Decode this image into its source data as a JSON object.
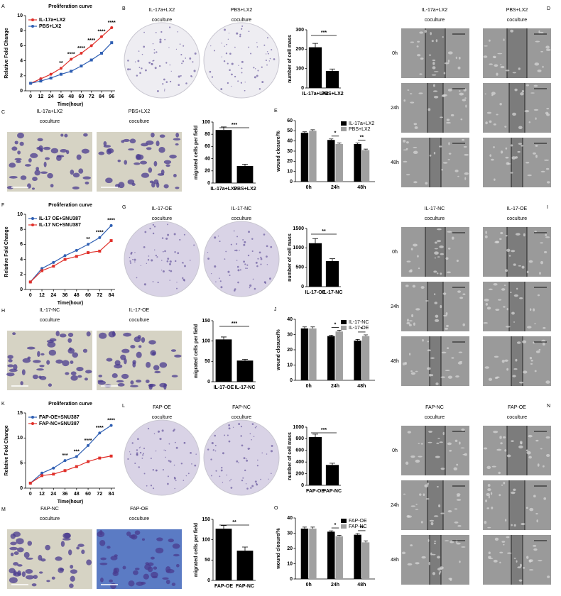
{
  "chart_data": [
    {
      "type": "line",
      "panel": "A",
      "title": "Proliferation curve",
      "x_label": "Time(hour)",
      "y_label": "Relative Fold Change",
      "x": [
        0,
        12,
        24,
        36,
        48,
        60,
        72,
        84,
        96
      ],
      "xlim": [
        -6,
        100
      ],
      "xticks": [
        0,
        12,
        24,
        36,
        48,
        60,
        72,
        84,
        96
      ],
      "ylim": [
        0,
        10
      ],
      "yticks": [
        0,
        2,
        4,
        6,
        8,
        10
      ],
      "legend": "upper left",
      "series": [
        {
          "name": "IL-17a+LX2",
          "color": "#e0302a",
          "values": [
            1,
            1.6,
            2.2,
            3,
            4.2,
            5,
            6,
            7.2,
            8.4
          ]
        },
        {
          "name": "PBS+LX2",
          "color": "#2f5fb3",
          "values": [
            1,
            1.3,
            1.7,
            2.2,
            2.6,
            3.3,
            4.1,
            5,
            6.4
          ]
        }
      ],
      "significance": [
        {
          "x": 36,
          "label": "**"
        },
        {
          "x": 48,
          "label": "****"
        },
        {
          "x": 60,
          "label": "****"
        },
        {
          "x": 72,
          "label": "****"
        },
        {
          "x": 84,
          "label": "****"
        },
        {
          "x": 96,
          "label": "****"
        }
      ]
    },
    {
      "type": "bar",
      "categories": [
        "IL-17a+LX2",
        "PBS+LX2"
      ],
      "values": [
        210,
        88
      ],
      "errors": [
        20,
        10
      ],
      "color": "#000000",
      "y_label": "number of cell mass",
      "ylim": [
        0,
        300
      ],
      "yticks": [
        0,
        100,
        200,
        300
      ],
      "significance": "***"
    },
    {
      "type": "bar",
      "categories": [
        "IL-17a+LX2",
        "PBS+LX2"
      ],
      "values": [
        87,
        28
      ],
      "errors": [
        5,
        3
      ],
      "color": "#000000",
      "y_label": "migrated cells per field",
      "ylim": [
        0,
        100
      ],
      "yticks": [
        0,
        20,
        40,
        60,
        80,
        100
      ],
      "significance": "***"
    },
    {
      "type": "grouped_bar",
      "panel": "E",
      "categories": [
        "0h",
        "24h",
        "48h"
      ],
      "y_label": "wound closure/%",
      "ylim": [
        0,
        60
      ],
      "yticks": [
        0,
        10,
        20,
        30,
        40,
        50,
        60
      ],
      "legend": "upper right",
      "series": [
        {
          "name": "IL-17a+LX2",
          "color": "#000000",
          "values": [
            48,
            41,
            37
          ],
          "errors": [
            1,
            1,
            1
          ]
        },
        {
          "name": "PBS+LX2",
          "color": "#a0a0a0",
          "values": [
            50,
            37,
            31
          ],
          "errors": [
            1,
            1,
            1
          ]
        }
      ],
      "significance": [
        null,
        "*",
        "**"
      ]
    },
    {
      "type": "line",
      "panel": "F",
      "title": "Proliferation curve",
      "x_label": "Time(hour)",
      "y_label": "Relative Fold Change",
      "x": [
        0,
        12,
        24,
        36,
        48,
        60,
        72,
        84
      ],
      "xlim": [
        -5,
        88
      ],
      "xticks": [
        0,
        12,
        24,
        36,
        48,
        60,
        72,
        84
      ],
      "ylim": [
        0,
        10
      ],
      "yticks": [
        0,
        2,
        4,
        6,
        8,
        10
      ],
      "legend": "upper left",
      "series": [
        {
          "name": "IL-17 OE+SNU387",
          "color": "#2f5fb3",
          "values": [
            1,
            2.8,
            3.6,
            4.5,
            5.2,
            6,
            6.9,
            8.5
          ]
        },
        {
          "name": "IL-17 NC+SNU387",
          "color": "#e0302a",
          "values": [
            1,
            2.5,
            3.1,
            4,
            4.4,
            4.9,
            5.1,
            6.5
          ]
        }
      ],
      "significance": [
        {
          "x": 60,
          "label": "**"
        },
        {
          "x": 72,
          "label": "****"
        },
        {
          "x": 84,
          "label": "****"
        }
      ]
    },
    {
      "type": "bar",
      "categories": [
        "IL-17-OE",
        "IL-17-NC"
      ],
      "values": [
        1120,
        660
      ],
      "errors": [
        120,
        60
      ],
      "color": "#000000",
      "y_label": "number of cell mass",
      "ylim": [
        0,
        1500
      ],
      "yticks": [
        0,
        500,
        1000,
        1500
      ],
      "significance": "**"
    },
    {
      "type": "bar",
      "categories": [
        "IL-17-OE",
        "IL-17-NC"
      ],
      "values": [
        104,
        52
      ],
      "errors": [
        6,
        3
      ],
      "color": "#000000",
      "y_label": "migrated cells per field",
      "ylim": [
        0,
        150
      ],
      "yticks": [
        0,
        50,
        100,
        150
      ],
      "significance": "***"
    },
    {
      "type": "grouped_bar",
      "panel": "J",
      "categories": [
        "0h",
        "24h",
        "48h"
      ],
      "y_label": "wound closure/%",
      "ylim": [
        0,
        40
      ],
      "yticks": [
        0,
        10,
        20,
        30,
        40
      ],
      "legend": "upper right",
      "series": [
        {
          "name": "IL-17-NC",
          "color": "#000000",
          "values": [
            34,
            29,
            26
          ],
          "errors": [
            1,
            0.6,
            0.8
          ]
        },
        {
          "name": "IL-17-OE",
          "color": "#a0a0a0",
          "values": [
            34,
            32,
            29
          ],
          "errors": [
            1,
            0.8,
            0.8
          ]
        }
      ],
      "significance": [
        null,
        "*",
        "*"
      ]
    },
    {
      "type": "line",
      "panel": "K",
      "title": "Proliferation curve",
      "x_label": "Time(hour)",
      "y_label": "Relative Fold Change",
      "x": [
        0,
        12,
        24,
        36,
        48,
        60,
        72,
        84
      ],
      "xlim": [
        -5,
        88
      ],
      "xticks": [
        0,
        12,
        24,
        36,
        48,
        60,
        72,
        84
      ],
      "ylim": [
        0,
        15
      ],
      "yticks": [
        0,
        5,
        10,
        15
      ],
      "legend": "upper left",
      "series": [
        {
          "name": "FAP-OE+SNU387",
          "color": "#2f5fb3",
          "values": [
            1,
            3,
            4,
            5.5,
            6.3,
            8.5,
            11,
            12.5
          ]
        },
        {
          "name": "FAP-NC+SNU387",
          "color": "#e0302a",
          "values": [
            1,
            2.5,
            2.8,
            3.5,
            4.3,
            5.3,
            6,
            6.4
          ]
        }
      ],
      "significance": [
        {
          "x": 36,
          "label": "***"
        },
        {
          "x": 48,
          "label": "***"
        },
        {
          "x": 60,
          "label": "****"
        },
        {
          "x": 72,
          "label": "****"
        },
        {
          "x": 84,
          "label": "****"
        }
      ]
    },
    {
      "type": "bar",
      "categories": [
        "FAP-OE",
        "FAP-NC"
      ],
      "values": [
        830,
        350
      ],
      "errors": [
        50,
        30
      ],
      "color": "#000000",
      "y_label": "number of cell mass",
      "ylim": [
        0,
        1000
      ],
      "yticks": [
        0,
        200,
        400,
        600,
        800,
        1000
      ],
      "significance": "***"
    },
    {
      "type": "bar",
      "categories": [
        "FAP-OE",
        "FAP-NC"
      ],
      "values": [
        127,
        73
      ],
      "errors": [
        8,
        9
      ],
      "color": "#000000",
      "y_label": "migrated cells per field",
      "ylim": [
        0,
        150
      ],
      "yticks": [
        0,
        50,
        100,
        150
      ],
      "significance": "**"
    },
    {
      "type": "grouped_bar",
      "panel": "O",
      "categories": [
        "0h",
        "24h",
        "48h"
      ],
      "y_label": "wound closure/%",
      "ylim": [
        0,
        40
      ],
      "yticks": [
        0,
        10,
        20,
        30,
        40
      ],
      "legend": "upper right",
      "series": [
        {
          "name": "FAP-OE",
          "color": "#000000",
          "values": [
            33,
            31,
            29
          ],
          "errors": [
            1,
            0.6,
            0.8
          ]
        },
        {
          "name": "FAP-NC",
          "color": "#a0a0a0",
          "values": [
            33,
            28,
            24
          ],
          "errors": [
            1,
            0.6,
            1
          ]
        }
      ],
      "significance": [
        null,
        "*",
        "**"
      ]
    }
  ],
  "image_panels": [
    {
      "panel": "B",
      "kind": "dish",
      "captions": [
        [
          "IL-17a+LX2",
          "coculture"
        ],
        [
          "PBS+LX2",
          "coculture"
        ]
      ]
    },
    {
      "panel": "C",
      "kind": "stain",
      "captions": [
        [
          "IL-17a+LX2",
          "coculture"
        ],
        [
          "PBS+LX2",
          "coculture"
        ]
      ]
    },
    {
      "panel": "D",
      "kind": "wound",
      "captions": [
        [
          "IL-17a+LX2",
          "coculture"
        ],
        [
          "PBS+LX2",
          "coculture"
        ]
      ],
      "rows": [
        "0h",
        "24h",
        "48h"
      ]
    },
    {
      "panel": "G",
      "kind": "dish",
      "captions": [
        [
          "IL-17-OE",
          "coculture"
        ],
        [
          "IL-17-NC",
          "coculture"
        ]
      ]
    },
    {
      "panel": "H",
      "kind": "stain",
      "captions": [
        [
          "IL-17-NC",
          "coculture"
        ],
        [
          "IL-17-OE",
          "coculture"
        ]
      ]
    },
    {
      "panel": "I",
      "kind": "wound",
      "captions": [
        [
          "IL-17-NC",
          "coculture"
        ],
        [
          "IL-17-OE",
          "coculture"
        ]
      ],
      "rows": [
        "0h",
        "24h",
        "48h"
      ]
    },
    {
      "panel": "L",
      "kind": "dish",
      "captions": [
        [
          "FAP-OE",
          "coculture"
        ],
        [
          "FAP-NC",
          "coculture"
        ]
      ]
    },
    {
      "panel": "M",
      "kind": "stain",
      "captions": [
        [
          "FAP-NC",
          "coculture"
        ],
        [
          "FAP-OE",
          "coculture"
        ]
      ]
    },
    {
      "panel": "N",
      "kind": "wound",
      "captions": [
        [
          "FAP-NC",
          "coculture"
        ],
        [
          "FAP-OE",
          "coculture"
        ]
      ],
      "rows": [
        "0h",
        "24h",
        "48h"
      ]
    }
  ]
}
